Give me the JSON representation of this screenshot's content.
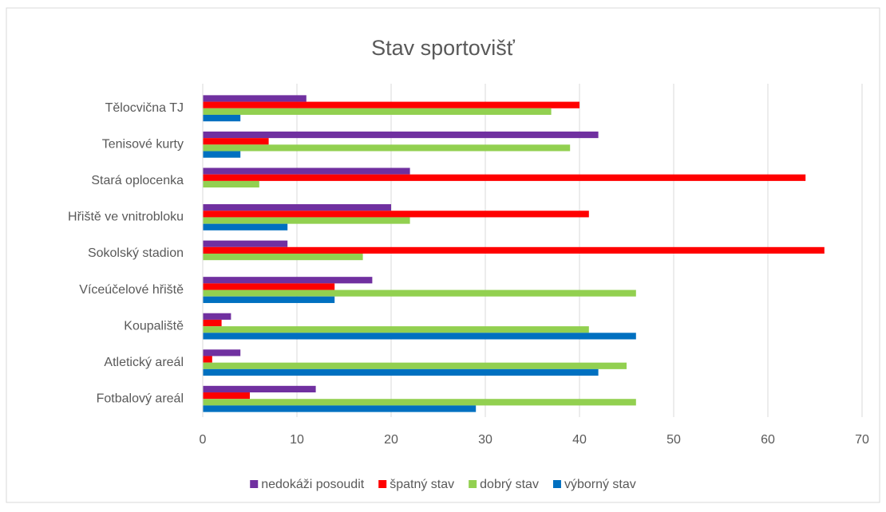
{
  "chart_data": {
    "type": "bar",
    "orientation": "horizontal",
    "title": "Stav sportovišť",
    "categories": [
      "Fotbalový areál",
      "Atletický areál",
      "Koupaliště",
      "Víceúčelové hřiště",
      "Sokolský stadion",
      "Hřiště ve vnitrobloku",
      "Stará oplocenka",
      "Tenisové kurty",
      "Tělocvična TJ"
    ],
    "series": [
      {
        "name": "nedokáži posoudit",
        "color": "#7030a0",
        "values": [
          12,
          4,
          3,
          18,
          9,
          20,
          22,
          42,
          11
        ]
      },
      {
        "name": "špatný stav",
        "color": "#ff0000",
        "values": [
          5,
          1,
          2,
          14,
          66,
          41,
          64,
          7,
          40
        ]
      },
      {
        "name": "dobrý stav",
        "color": "#92d050",
        "values": [
          46,
          45,
          41,
          46,
          17,
          22,
          6,
          39,
          37
        ]
      },
      {
        "name": "výborný stav",
        "color": "#0070c0",
        "values": [
          29,
          42,
          46,
          14,
          0,
          9,
          0,
          4,
          4
        ]
      }
    ],
    "xlim": [
      0,
      70
    ],
    "xticks": [
      0,
      10,
      20,
      30,
      40,
      50,
      60,
      70
    ],
    "grid": true,
    "legend": "bottom"
  }
}
